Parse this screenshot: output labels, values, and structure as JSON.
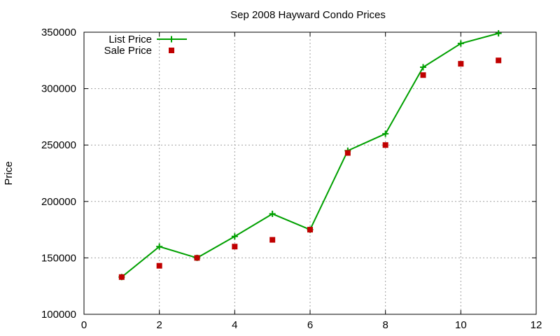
{
  "chart_data": {
    "type": "line",
    "title": "Sep 2008 Hayward Condo Prices",
    "xlabel": "",
    "ylabel": "Price",
    "xlim": [
      0,
      12
    ],
    "ylim": [
      100000,
      350000
    ],
    "xticks": [
      0,
      2,
      4,
      6,
      8,
      10,
      12
    ],
    "yticks": [
      100000,
      150000,
      200000,
      250000,
      300000,
      350000
    ],
    "x_tick_labels": [
      "0",
      "2",
      "4",
      "6",
      "8",
      "10",
      "12"
    ],
    "y_tick_labels": [
      "100000",
      "150000",
      "200000",
      "250000",
      "300000",
      "350000"
    ],
    "grid": true,
    "legend_position": "top-left",
    "series": [
      {
        "name": "List Price",
        "style": "line-points",
        "marker": "plus",
        "color": "#00a000",
        "x": [
          1,
          2,
          3,
          4,
          5,
          6,
          7,
          8,
          9,
          10,
          11
        ],
        "values": [
          133000,
          160000,
          150000,
          169000,
          189000,
          175000,
          245000,
          260000,
          319000,
          340000,
          349000
        ]
      },
      {
        "name": "Sale Price",
        "style": "points",
        "marker": "square",
        "color": "#c00000",
        "x": [
          1,
          2,
          3,
          4,
          5,
          6,
          7,
          8,
          9,
          10,
          11
        ],
        "values": [
          133000,
          143000,
          150000,
          160000,
          166000,
          175000,
          243000,
          250000,
          312000,
          322000,
          325000
        ]
      }
    ]
  }
}
